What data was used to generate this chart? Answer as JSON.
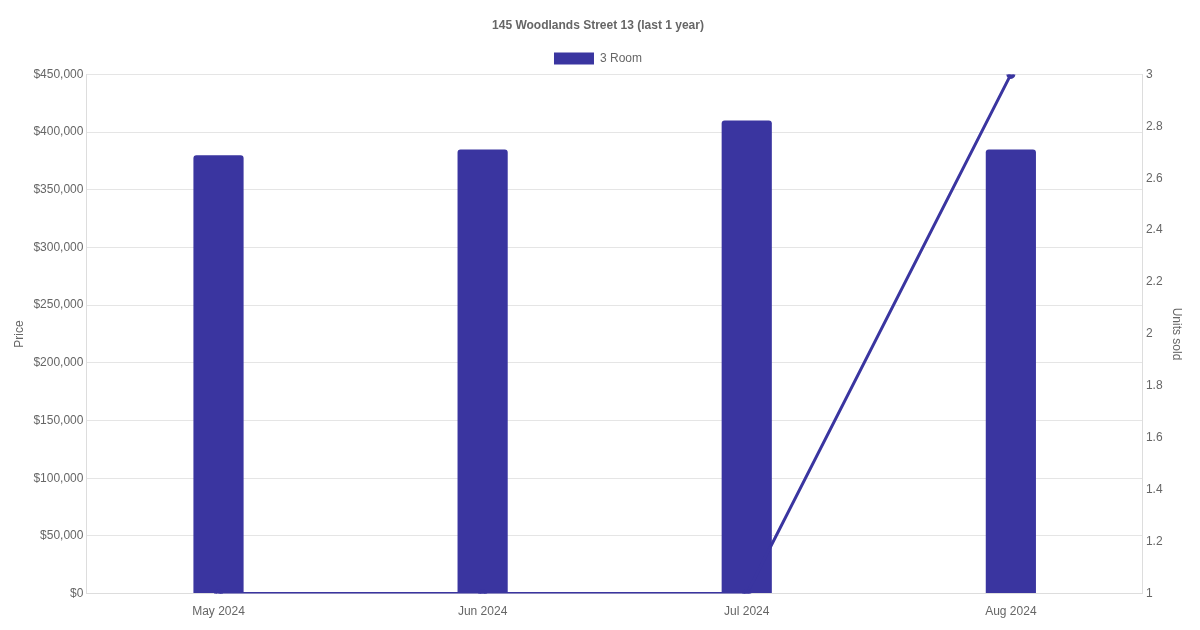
{
  "chart_data": {
    "type": "bar",
    "title": "145 Woodlands Street 13 (last 1 year)",
    "categories": [
      "May 2024",
      "Jun 2024",
      "Jul 2024",
      "Aug 2024"
    ],
    "series": [
      {
        "name": "3 Room",
        "color": "#3a35a0",
        "values": [
          380000,
          385000,
          410000,
          385000
        ]
      },
      {
        "type": "line",
        "axis": "y2",
        "color": "#3a35a0",
        "values": [
          1,
          1,
          1,
          3
        ]
      }
    ],
    "ylabel": "Price",
    "y2label": "Units sold",
    "ylim": [
      0,
      450000
    ],
    "yticks": [
      {
        "value": 0,
        "label": "$0"
      },
      {
        "value": 50000,
        "label": "$50,000"
      },
      {
        "value": 100000,
        "label": "$100,000"
      },
      {
        "value": 150000,
        "label": "$150,000"
      },
      {
        "value": 200000,
        "label": "$200,000"
      },
      {
        "value": 250000,
        "label": "$250,000"
      },
      {
        "value": 300000,
        "label": "$300,000"
      },
      {
        "value": 350000,
        "label": "$350,000"
      },
      {
        "value": 400000,
        "label": "$400,000"
      },
      {
        "value": 450000,
        "label": "$450,000"
      }
    ],
    "y2lim": [
      1,
      3
    ],
    "y2ticks": [
      1,
      1.2,
      1.4,
      1.6,
      1.8,
      2,
      2.2,
      2.4,
      2.6,
      2.8,
      3
    ],
    "grid": "y",
    "legend": "top",
    "marker": "circle",
    "line_style": "solid"
  }
}
